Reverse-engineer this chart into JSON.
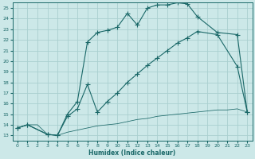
{
  "xlabel": "Humidex (Indice chaleur)",
  "bg_color": "#cce8e8",
  "grid_color": "#aad0d0",
  "line_color": "#1a6868",
  "xlim": [
    -0.5,
    23.5
  ],
  "ylim": [
    12.5,
    25.5
  ],
  "xticks": [
    0,
    1,
    2,
    3,
    4,
    5,
    6,
    7,
    8,
    9,
    10,
    11,
    12,
    13,
    14,
    15,
    16,
    17,
    18,
    19,
    20,
    21,
    22,
    23
  ],
  "yticks": [
    13,
    14,
    15,
    16,
    17,
    18,
    19,
    20,
    21,
    22,
    23,
    24,
    25
  ],
  "line1_x": [
    0,
    1,
    3,
    4,
    5,
    6,
    7,
    8,
    9,
    10,
    11,
    12,
    13,
    14,
    15,
    16,
    17,
    18,
    20,
    22,
    23
  ],
  "line1_y": [
    13.7,
    14.0,
    13.1,
    13.0,
    15.0,
    16.2,
    21.8,
    22.7,
    22.9,
    23.2,
    24.5,
    23.4,
    25.0,
    25.3,
    25.3,
    25.5,
    25.4,
    24.2,
    22.7,
    22.5,
    15.2
  ],
  "line2_x": [
    0,
    1,
    3,
    4,
    5,
    6,
    7,
    8,
    9,
    10,
    11,
    12,
    13,
    14,
    15,
    16,
    17,
    18,
    20,
    22,
    23
  ],
  "line2_y": [
    13.7,
    14.0,
    13.1,
    13.0,
    14.8,
    15.5,
    17.8,
    15.2,
    16.2,
    17.0,
    18.0,
    18.8,
    19.6,
    20.3,
    21.0,
    21.7,
    22.2,
    22.8,
    22.5,
    19.5,
    15.2
  ],
  "line3_x": [
    0,
    1,
    2,
    3,
    4,
    5,
    6,
    7,
    8,
    9,
    10,
    11,
    12,
    13,
    14,
    15,
    16,
    17,
    18,
    19,
    20,
    21,
    22,
    23
  ],
  "line3_y": [
    13.7,
    14.0,
    14.0,
    13.1,
    13.0,
    13.3,
    13.5,
    13.7,
    13.9,
    14.0,
    14.1,
    14.3,
    14.5,
    14.6,
    14.8,
    14.9,
    15.0,
    15.1,
    15.2,
    15.3,
    15.4,
    15.4,
    15.5,
    15.2
  ]
}
